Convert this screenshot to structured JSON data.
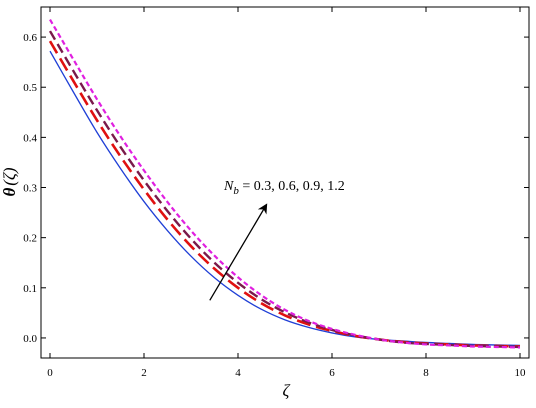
{
  "chart_data": {
    "type": "line",
    "xlabel": "ζ",
    "ylabel_main": "θ",
    "ylabel_arg": "(ζ)",
    "xlim": [
      0,
      10
    ],
    "ylim": [
      -0.04,
      0.66
    ],
    "xticks": [
      0,
      2,
      4,
      6,
      8,
      10
    ],
    "yticks": [
      0.0,
      0.1,
      0.2,
      0.3,
      0.4,
      0.5,
      0.6
    ],
    "ytick_labels": [
      "0.0",
      "0.1",
      "0.2",
      "0.3",
      "0.4",
      "0.5",
      "0.6"
    ],
    "grid": false,
    "annotation": {
      "symbol": "N",
      "subscript": "b",
      "text": " = 0.3, 0.6, 0.9, 1.2",
      "arrow_from": [
        3.4,
        0.075
      ],
      "arrow_to": [
        4.6,
        0.265
      ]
    },
    "series": [
      {
        "color": "#1f3fd6",
        "dash": "solid",
        "x": [
          0,
          0.5,
          1,
          1.5,
          2,
          2.5,
          3,
          3.5,
          4,
          4.5,
          5,
          5.5,
          6,
          6.5,
          7,
          7.5,
          8,
          8.5,
          9,
          9.5,
          10
        ],
        "y": [
          0.572,
          0.49,
          0.41,
          0.338,
          0.272,
          0.214,
          0.163,
          0.12,
          0.085,
          0.057,
          0.036,
          0.021,
          0.01,
          0.002,
          -0.003,
          -0.006,
          -0.009,
          -0.011,
          -0.013,
          -0.014,
          -0.015
        ]
      },
      {
        "color": "#e01010",
        "dash": "long",
        "x": [
          0,
          0.5,
          1,
          1.5,
          2,
          2.5,
          3,
          3.5,
          4,
          4.5,
          5,
          5.5,
          6,
          6.5,
          7,
          7.5,
          8,
          8.5,
          9,
          9.5,
          10
        ],
        "y": [
          0.592,
          0.512,
          0.434,
          0.362,
          0.296,
          0.236,
          0.183,
          0.138,
          0.1,
          0.069,
          0.045,
          0.027,
          0.014,
          0.004,
          -0.003,
          -0.008,
          -0.011,
          -0.013,
          -0.015,
          -0.016,
          -0.017
        ]
      },
      {
        "color": "#7a1a4a",
        "dash": "medium",
        "x": [
          0,
          0.5,
          1,
          1.5,
          2,
          2.5,
          3,
          3.5,
          4,
          4.5,
          5,
          5.5,
          6,
          6.5,
          7,
          7.5,
          8,
          8.5,
          9,
          9.5,
          10
        ],
        "y": [
          0.612,
          0.532,
          0.454,
          0.381,
          0.314,
          0.253,
          0.198,
          0.15,
          0.11,
          0.077,
          0.051,
          0.031,
          0.016,
          0.005,
          -0.003,
          -0.009,
          -0.012,
          -0.014,
          -0.016,
          -0.017,
          -0.018
        ]
      },
      {
        "color": "#e020e0",
        "dash": "short",
        "x": [
          0,
          0.5,
          1,
          1.5,
          2,
          2.5,
          3,
          3.5,
          4,
          4.5,
          5,
          5.5,
          6,
          6.5,
          7,
          7.5,
          8,
          8.5,
          9,
          9.5,
          10
        ],
        "y": [
          0.635,
          0.555,
          0.476,
          0.402,
          0.334,
          0.271,
          0.214,
          0.164,
          0.121,
          0.085,
          0.056,
          0.034,
          0.018,
          0.006,
          -0.003,
          -0.009,
          -0.013,
          -0.015,
          -0.017,
          -0.018,
          -0.019
        ]
      }
    ]
  }
}
